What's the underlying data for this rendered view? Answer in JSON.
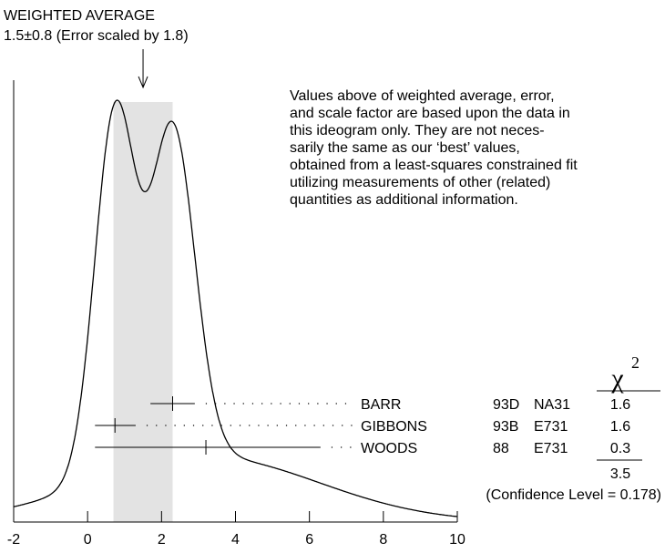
{
  "header": {
    "title": "WEIGHTED AVERAGE",
    "subtitle": "1.5±0.8 (Error scaled by 1.8)"
  },
  "note": {
    "lines": [
      "Values above of weighted average, error,",
      "and scale factor are based upon the data in",
      "this ideogram only.  They are not neces-",
      "sarily the same as our ‘best’ values,",
      "obtained from a least-squares constrained fit",
      "utilizing measurements of other (related)",
      "quantities as additional information."
    ]
  },
  "chi2_column": {
    "symbol": "χ",
    "exponent": "2",
    "total": "3.5",
    "confidence": "(Confidence Level = 0.178)"
  },
  "chart_data": {
    "type": "ideogram",
    "xlim": [
      -2,
      10
    ],
    "x_ticks": [
      "-2",
      "0",
      "2",
      "4",
      "6",
      "8",
      "10"
    ],
    "weighted_average": {
      "value": 1.5,
      "error": 0.8,
      "band": [
        0.7,
        2.3
      ]
    },
    "measurements": [
      {
        "author": "BARR",
        "year": "93D",
        "code": "NA31",
        "value": 2.3,
        "low": 1.7,
        "high": 2.9,
        "chi2": "1.6"
      },
      {
        "author": "GIBBONS",
        "year": "93B",
        "code": "E731",
        "value": 0.74,
        "low": 0.2,
        "high": 1.3,
        "chi2": "1.6"
      },
      {
        "author": "WOODS",
        "year": "88",
        "code": "E731",
        "value": 3.2,
        "low": 0.2,
        "high": 6.3,
        "chi2": "0.3"
      }
    ]
  }
}
